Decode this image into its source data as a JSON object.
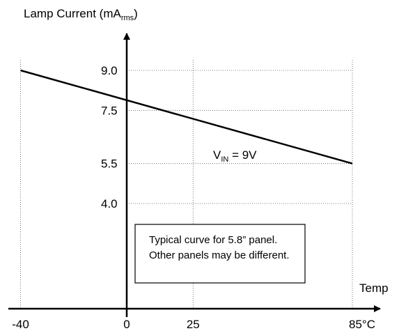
{
  "chart_data": {
    "type": "line",
    "ylabel": {
      "main": "Lamp Current (mA",
      "sub": "rms",
      "tail": ")"
    },
    "xlabel": "Temp",
    "x_ticks": [
      "-40",
      "0",
      "25",
      "85°C"
    ],
    "x_tick_values": [
      -40,
      0,
      25,
      85
    ],
    "y_ticks": [
      "9.0",
      "7.5",
      "5.5",
      "4.0"
    ],
    "y_tick_values": [
      9.0,
      7.5,
      5.5,
      4.0
    ],
    "grid": true,
    "series": [
      {
        "name": {
          "main": "V",
          "sub": "IN",
          "tail": " = 9V"
        },
        "x": [
          -40,
          85
        ],
        "y": [
          9.0,
          5.5
        ]
      }
    ],
    "note_lines": [
      "Typical curve for 5.8” panel.",
      "Other panels may be different."
    ]
  }
}
